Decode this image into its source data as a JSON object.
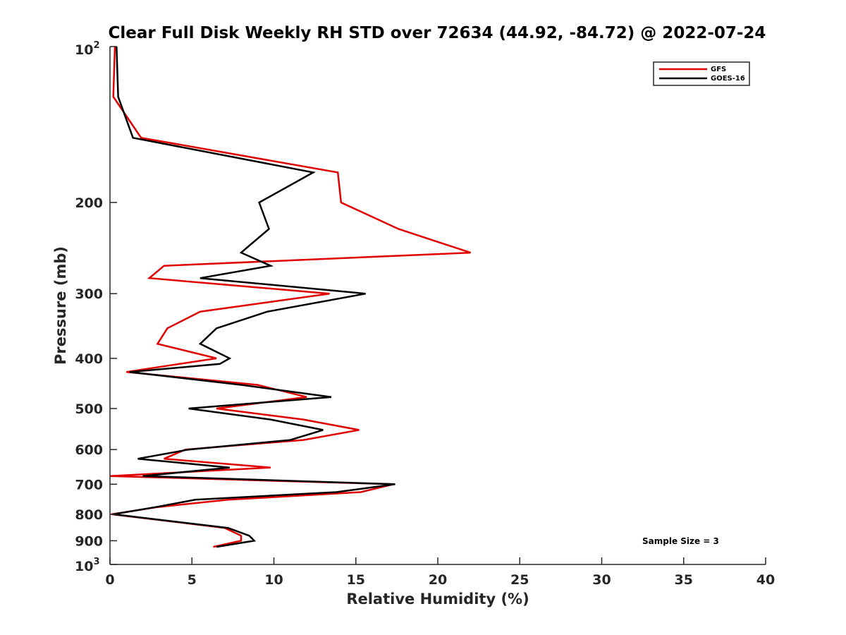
{
  "chart_data": {
    "type": "line",
    "title": "Clear Full Disk Weekly RH STD over 72634 (44.92, -84.72) @ 2022-07-24",
    "xlabel": "Relative Humidity (%)",
    "ylabel": "Pressure (mb)",
    "xlim": [
      0,
      40
    ],
    "ylim": [
      100,
      1000
    ],
    "yscale": "log",
    "y_reversed": true,
    "x_ticks": [
      0,
      5,
      10,
      15,
      20,
      25,
      30,
      35,
      40
    ],
    "x_tick_labels": [
      "0",
      "5",
      "10",
      "15",
      "20",
      "25",
      "30",
      "35",
      "40"
    ],
    "y_ticks": [
      200,
      300,
      400,
      500,
      600,
      700,
      800,
      900
    ],
    "y_tick_labels": [
      "200",
      "300",
      "400",
      "500",
      "600",
      "700",
      "800",
      "900"
    ],
    "y_limit_labels": {
      "top": {
        "value": 100,
        "base": "10",
        "exp": "2"
      },
      "bottom": {
        "value": 1000,
        "base": "10",
        "exp": "3"
      }
    },
    "legend_position": "top-right",
    "grid": false,
    "annotation": "Sample Size = 3",
    "series": [
      {
        "name": "GFS",
        "color": "#e00000",
        "points": [
          [
            0.3,
            100
          ],
          [
            0.2,
            125
          ],
          [
            1.9,
            150
          ],
          [
            13.9,
            175
          ],
          [
            14.1,
            200
          ],
          [
            17.6,
            225
          ],
          [
            22.0,
            250
          ],
          [
            3.3,
            265
          ],
          [
            2.4,
            280
          ],
          [
            13.4,
            300
          ],
          [
            5.5,
            325
          ],
          [
            3.5,
            350
          ],
          [
            2.9,
            375
          ],
          [
            6.5,
            400
          ],
          [
            1.0,
            425
          ],
          [
            9.0,
            450
          ],
          [
            12.0,
            475
          ],
          [
            6.5,
            500
          ],
          [
            11.8,
            525
          ],
          [
            15.2,
            550
          ],
          [
            11.8,
            575
          ],
          [
            4.6,
            600
          ],
          [
            3.3,
            625
          ],
          [
            9.8,
            650
          ],
          [
            0.0,
            675
          ],
          [
            17.3,
            700
          ],
          [
            15.3,
            725
          ],
          [
            7.2,
            750
          ],
          [
            2.9,
            775
          ],
          [
            0.1,
            800
          ],
          [
            7.0,
            850
          ],
          [
            8.0,
            880
          ],
          [
            8.0,
            900
          ],
          [
            6.3,
            925
          ]
        ]
      },
      {
        "name": "GOES-16",
        "color": "#000000",
        "points": [
          [
            0.4,
            100
          ],
          [
            0.5,
            125
          ],
          [
            1.4,
            150
          ],
          [
            12.4,
            175
          ],
          [
            9.1,
            200
          ],
          [
            9.7,
            225
          ],
          [
            8.0,
            250
          ],
          [
            9.8,
            265
          ],
          [
            5.5,
            280
          ],
          [
            15.6,
            300
          ],
          [
            9.6,
            325
          ],
          [
            6.5,
            350
          ],
          [
            5.5,
            375
          ],
          [
            7.3,
            400
          ],
          [
            6.7,
            410
          ],
          [
            1.2,
            425
          ],
          [
            8.0,
            450
          ],
          [
            13.5,
            475
          ],
          [
            4.8,
            500
          ],
          [
            9.8,
            525
          ],
          [
            13.0,
            550
          ],
          [
            11.0,
            575
          ],
          [
            4.8,
            600
          ],
          [
            1.7,
            625
          ],
          [
            7.3,
            650
          ],
          [
            2.0,
            675
          ],
          [
            17.4,
            700
          ],
          [
            13.8,
            725
          ],
          [
            5.2,
            750
          ],
          [
            2.8,
            775
          ],
          [
            0.2,
            800
          ],
          [
            7.2,
            850
          ],
          [
            8.5,
            880
          ],
          [
            8.8,
            900
          ],
          [
            6.5,
            925
          ]
        ]
      }
    ]
  }
}
